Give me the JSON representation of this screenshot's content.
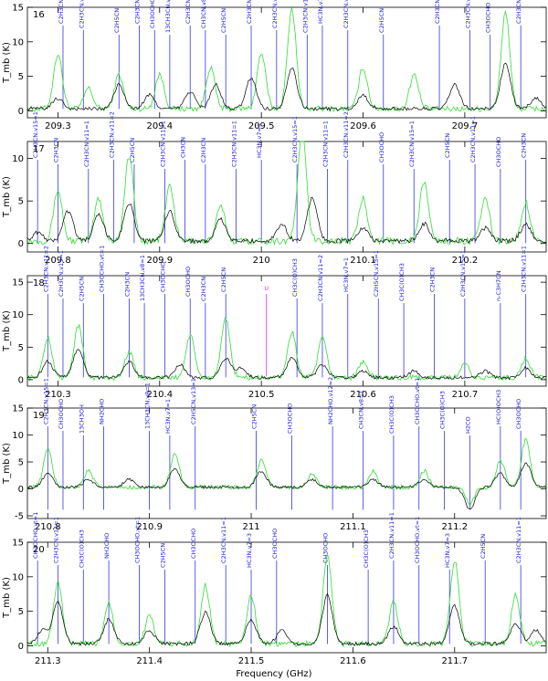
{
  "chart_data": {
    "type": "line",
    "xlabel": "Frequency (GHz)",
    "ylabel": "T_mb (K)",
    "colors": {
      "observed": "#000000",
      "model": "#33dd33",
      "lines": "#1a1adf",
      "unidentified": "#ee22ee"
    },
    "panels": [
      {
        "number": "16",
        "xlim": [
          209.27,
          209.78
        ],
        "ylim": [
          -1,
          15
        ],
        "xticks": [
          "209.3",
          "209.4",
          "209.5",
          "209.6",
          "209.7"
        ],
        "xtick_values": [
          209.3,
          209.4,
          209.5,
          209.6,
          209.7
        ],
        "yticks": [
          "0",
          "5",
          "10",
          "15"
        ],
        "ytick_values": [
          0,
          5,
          10,
          15
        ],
        "peaks": [
          [
            209.3,
            1.5
          ],
          [
            209.36,
            3.5
          ],
          [
            209.39,
            2.0
          ],
          [
            209.43,
            2.5
          ],
          [
            209.455,
            3.5
          ],
          [
            209.49,
            4.5
          ],
          [
            209.53,
            6.0
          ],
          [
            209.6,
            2.0
          ],
          [
            209.69,
            3.5
          ],
          [
            209.74,
            6.5
          ],
          [
            209.77,
            1.5
          ]
        ],
        "model_peaks": [
          [
            209.3,
            8.0
          ],
          [
            209.33,
            3.0
          ],
          [
            209.36,
            5.0
          ],
          [
            209.4,
            5.0
          ],
          [
            209.45,
            6.0
          ],
          [
            209.5,
            8.0
          ],
          [
            209.53,
            14.5
          ],
          [
            209.6,
            6.0
          ],
          [
            209.65,
            5.0
          ],
          [
            209.74,
            14.0
          ]
        ],
        "lines": [
          {
            "x": 209.305,
            "label": "C2H3CN,v11=1"
          },
          {
            "x": 209.325,
            "label": "C2H3CN,v15=1"
          },
          {
            "x": 209.36,
            "label": "C2H5CN"
          },
          {
            "x": 209.38,
            "label": "C2H3CN,v11=1"
          },
          {
            "x": 209.395,
            "label": "CH3OCHO"
          },
          {
            "x": 209.41,
            "label": "13CH3CN,v8=1"
          },
          {
            "x": 209.43,
            "label": "C2H3CN,v11=1"
          },
          {
            "x": 209.445,
            "label": "CH3CN,v8=1"
          },
          {
            "x": 209.465,
            "label": "C2H5CN"
          },
          {
            "x": 209.49,
            "label": "C2H3CN,v11=1"
          },
          {
            "x": 209.515,
            "label": "C2H3CN,v15=1"
          },
          {
            "x": 209.545,
            "label": "C2H3CN,v11=1"
          },
          {
            "x": 209.56,
            "label": "HC3N,v7=1"
          },
          {
            "x": 209.585,
            "label": "C2H3CN,v11=2"
          },
          {
            "x": 209.62,
            "label": "C2H5CN"
          },
          {
            "x": 209.675,
            "label": "C2H3CN,v15=1"
          },
          {
            "x": 209.705,
            "label": "C2H3CN,v11=1"
          },
          {
            "x": 209.725,
            "label": "CH3OCHO"
          },
          {
            "x": 209.755,
            "label": "C2H3CN"
          }
        ]
      },
      {
        "number": "17",
        "xlim": [
          209.77,
          210.28
        ],
        "ylim": [
          -1,
          12
        ],
        "xticks": [
          "209.8",
          "209.9",
          "210",
          "210.1",
          "210.2"
        ],
        "xtick_values": [
          209.8,
          209.9,
          210.0,
          210.1,
          210.2
        ],
        "yticks": [
          "0",
          "5",
          "10"
        ],
        "ytick_values": [
          0,
          5,
          10
        ],
        "peaks": [
          [
            209.78,
            1.0
          ],
          [
            209.81,
            3.5
          ],
          [
            209.84,
            3.0
          ],
          [
            209.87,
            4.5
          ],
          [
            209.91,
            3.5
          ],
          [
            209.96,
            2.5
          ],
          [
            210.02,
            2.0
          ],
          [
            210.05,
            5.0
          ],
          [
            210.1,
            1.5
          ],
          [
            210.16,
            2.0
          ],
          [
            210.22,
            1.5
          ],
          [
            210.26,
            2.0
          ]
        ],
        "model_peaks": [
          [
            209.8,
            6.0
          ],
          [
            209.84,
            5.0
          ],
          [
            209.87,
            10.0
          ],
          [
            209.91,
            6.5
          ],
          [
            209.96,
            4.0
          ],
          [
            210.04,
            13.0
          ],
          [
            210.1,
            5.0
          ],
          [
            210.16,
            7.0
          ],
          [
            210.22,
            5.0
          ],
          [
            210.26,
            4.5
          ]
        ],
        "lines": [
          {
            "x": 209.78,
            "label": "C2H3CN,v15=1"
          },
          {
            "x": 209.8,
            "label": "C2H3CN"
          },
          {
            "x": 209.83,
            "label": "C2H3CN,v11=1"
          },
          {
            "x": 209.855,
            "label": "C2H3CN,v11=2"
          },
          {
            "x": 209.875,
            "label": "C2H5CN"
          },
          {
            "x": 209.905,
            "label": "C2H3CN,v11=1"
          },
          {
            "x": 209.925,
            "label": "CH3CN"
          },
          {
            "x": 209.945,
            "label": "C2H3CN"
          },
          {
            "x": 209.975,
            "label": "C2H3CN,v11=1"
          },
          {
            "x": 210.0,
            "label": "HC3N,v7=1"
          },
          {
            "x": 210.035,
            "label": "C2H3CN,v15=1"
          },
          {
            "x": 210.065,
            "label": "C2H3CN,v11=1"
          },
          {
            "x": 210.085,
            "label": "C2H3CN,v11=2"
          },
          {
            "x": 210.12,
            "label": "CH3OCHO"
          },
          {
            "x": 210.15,
            "label": "C2H3CN,v15=1"
          },
          {
            "x": 210.185,
            "label": "C2H5CN"
          },
          {
            "x": 210.21,
            "label": "C2H3CN,v11=1"
          },
          {
            "x": 210.235,
            "label": "CH3OCHO"
          },
          {
            "x": 210.26,
            "label": "C2H3CN"
          }
        ]
      },
      {
        "number": "18",
        "xlim": [
          210.27,
          210.78
        ],
        "ylim": [
          -1,
          16
        ],
        "xticks": [
          "210.3",
          "210.4",
          "210.5",
          "210.6",
          "210.7"
        ],
        "xtick_values": [
          210.3,
          210.4,
          210.5,
          210.6,
          210.7
        ],
        "yticks": [
          "0",
          "5",
          "10",
          "15"
        ],
        "ytick_values": [
          0,
          5,
          10,
          15
        ],
        "peaks": [
          [
            210.29,
            2.5
          ],
          [
            210.32,
            4.5
          ],
          [
            210.37,
            2.5
          ],
          [
            210.42,
            2.0
          ],
          [
            210.465,
            3.0
          ],
          [
            210.48,
            1.5
          ],
          [
            210.53,
            3.0
          ],
          [
            210.56,
            2.0
          ],
          [
            210.6,
            1.0
          ],
          [
            210.65,
            1.0
          ],
          [
            210.72,
            1.0
          ],
          [
            210.76,
            1.5
          ]
        ],
        "model_peaks": [
          [
            210.29,
            6.0
          ],
          [
            210.32,
            8.0
          ],
          [
            210.37,
            4.0
          ],
          [
            210.43,
            6.5
          ],
          [
            210.465,
            9.0
          ],
          [
            210.53,
            7.0
          ],
          [
            210.56,
            6.0
          ],
          [
            210.6,
            2.5
          ],
          [
            210.7,
            2.0
          ],
          [
            210.76,
            3.0
          ]
        ],
        "u_marker": {
          "x": 210.505,
          "label": "U"
        },
        "lines": [
          {
            "x": 210.29,
            "label": "C2H3CN,v11=2"
          },
          {
            "x": 210.305,
            "label": "C2H3CN,v15=1"
          },
          {
            "x": 210.325,
            "label": "C2H5CN"
          },
          {
            "x": 210.345,
            "label": "CH3OCHO,vt=1"
          },
          {
            "x": 210.37,
            "label": "C2H3CN"
          },
          {
            "x": 210.385,
            "label": "13CH3CN,v8=1"
          },
          {
            "x": 210.405,
            "label": "CH3OCHO"
          },
          {
            "x": 210.43,
            "label": "CH3OCHO"
          },
          {
            "x": 210.445,
            "label": "C2H3CN"
          },
          {
            "x": 210.465,
            "label": "C2H5CN"
          },
          {
            "x": 210.535,
            "label": "CH3C(O)CH3"
          },
          {
            "x": 210.56,
            "label": "C2H3CN,v11=2"
          },
          {
            "x": 210.585,
            "label": "HC3N,v7=1"
          },
          {
            "x": 210.615,
            "label": "C2H5CN,v13=1"
          },
          {
            "x": 210.64,
            "label": "CH3C(O)CH3"
          },
          {
            "x": 210.67,
            "label": "C2H3CN"
          },
          {
            "x": 210.7,
            "label": "C2H3CN,v15=1"
          },
          {
            "x": 210.735,
            "label": "n-C3H7CN"
          },
          {
            "x": 210.76,
            "label": "C2H3CN,v11=1"
          }
        ]
      },
      {
        "number": "19",
        "xlim": [
          210.78,
          211.29
        ],
        "ylim": [
          -5.5,
          15
        ],
        "xticks": [
          "210.8",
          "210.9",
          "211",
          "211.1",
          "211.2"
        ],
        "xtick_values": [
          210.8,
          210.9,
          211.0,
          211.1,
          211.2
        ],
        "yticks": [
          "-5",
          "0",
          "5",
          "10",
          "15"
        ],
        "ytick_values": [
          -5,
          0,
          5,
          10,
          15
        ],
        "peaks": [
          [
            210.8,
            2.5
          ],
          [
            210.84,
            1.5
          ],
          [
            210.88,
            1.5
          ],
          [
            210.925,
            3.5
          ],
          [
            211.01,
            3.0
          ],
          [
            211.06,
            1.5
          ],
          [
            211.12,
            1.5
          ],
          [
            211.17,
            1.5
          ],
          [
            211.215,
            -4.0
          ],
          [
            211.245,
            2.5
          ],
          [
            211.27,
            4.5
          ]
        ],
        "model_peaks": [
          [
            210.8,
            7.0
          ],
          [
            210.84,
            3.0
          ],
          [
            210.925,
            6.0
          ],
          [
            211.01,
            5.0
          ],
          [
            211.06,
            2.5
          ],
          [
            211.12,
            3.0
          ],
          [
            211.17,
            3.0
          ],
          [
            211.215,
            -3.0
          ],
          [
            211.245,
            5.0
          ],
          [
            211.27,
            9.0
          ]
        ],
        "lines": [
          {
            "x": 210.8,
            "label": "C2H3CN,v15=1"
          },
          {
            "x": 210.815,
            "label": "CH3OCHO"
          },
          {
            "x": 210.835,
            "label": "13CH3OH"
          },
          {
            "x": 210.855,
            "label": "NH2CHO"
          },
          {
            "x": 210.9,
            "label": "13CH3CN,v8=1"
          },
          {
            "x": 210.92,
            "label": "HC3N,v7=1"
          },
          {
            "x": 210.945,
            "label": "C2H5CN,v13=1"
          },
          {
            "x": 211.005,
            "label": "C2H5CN"
          },
          {
            "x": 211.04,
            "label": "CH3OCHO"
          },
          {
            "x": 211.08,
            "label": "NH2CHO,v12=2"
          },
          {
            "x": 211.11,
            "label": "CH3CN,v8=1"
          },
          {
            "x": 211.14,
            "label": "CH3C(O)CH3"
          },
          {
            "x": 211.165,
            "label": "CH3OCHO,vt=1"
          },
          {
            "x": 211.19,
            "label": "CH3C(O)CH3"
          },
          {
            "x": 211.215,
            "label": "H2CO"
          },
          {
            "x": 211.245,
            "label": "HC(O)OCH3"
          },
          {
            "x": 211.265,
            "label": "CH3OCHO"
          }
        ]
      },
      {
        "number": "20",
        "xlim": [
          211.28,
          211.79
        ],
        "ylim": [
          -1,
          15
        ],
        "xticks": [
          "211.3",
          "211.4",
          "211.5",
          "211.6",
          "211.7"
        ],
        "xtick_values": [
          211.3,
          211.4,
          211.5,
          211.6,
          211.7
        ],
        "yticks": [
          "0",
          "5",
          "10",
          "15"
        ],
        "ytick_values": [
          0,
          5,
          10,
          15
        ],
        "peaks": [
          [
            211.295,
            2.0
          ],
          [
            211.31,
            6.0
          ],
          [
            211.36,
            3.5
          ],
          [
            211.4,
            2.0
          ],
          [
            211.455,
            4.5
          ],
          [
            211.5,
            3.5
          ],
          [
            211.53,
            2.0
          ],
          [
            211.575,
            7.0
          ],
          [
            211.64,
            2.5
          ],
          [
            211.7,
            5.5
          ],
          [
            211.76,
            3.0
          ],
          [
            211.78,
            2.0
          ]
        ],
        "model_peaks": [
          [
            211.31,
            9.0
          ],
          [
            211.36,
            6.0
          ],
          [
            211.4,
            4.0
          ],
          [
            211.455,
            8.5
          ],
          [
            211.5,
            7.0
          ],
          [
            211.575,
            13.0
          ],
          [
            211.64,
            6.0
          ],
          [
            211.7,
            12.0
          ],
          [
            211.76,
            7.0
          ]
        ],
        "lines": [
          {
            "x": 211.29,
            "label": "CH3OCHO,vt=1"
          },
          {
            "x": 211.31,
            "label": "C2H3CN,v11=1"
          },
          {
            "x": 211.335,
            "label": "CH3C(O)CH3"
          },
          {
            "x": 211.36,
            "label": "NH2CHO"
          },
          {
            "x": 211.39,
            "label": "CH3OCHO,vt=1"
          },
          {
            "x": 211.415,
            "label": "C2H5CN"
          },
          {
            "x": 211.445,
            "label": "CH3OCHO"
          },
          {
            "x": 211.475,
            "label": "C2H3CN,v11=1"
          },
          {
            "x": 211.5,
            "label": "HC3N,v7=3"
          },
          {
            "x": 211.525,
            "label": "CH3OCHO"
          },
          {
            "x": 211.575,
            "label": "CH3OCHO"
          },
          {
            "x": 211.615,
            "label": "CH3C(O)CH3"
          },
          {
            "x": 211.64,
            "label": "C2H3CN,v11=1"
          },
          {
            "x": 211.665,
            "label": "CH3OCHO,vt=1"
          },
          {
            "x": 211.695,
            "label": "HC3N,v7=3"
          },
          {
            "x": 211.73,
            "label": "C2H5CN"
          },
          {
            "x": 211.765,
            "label": "C2H3CN,v11=1"
          }
        ]
      }
    ]
  }
}
